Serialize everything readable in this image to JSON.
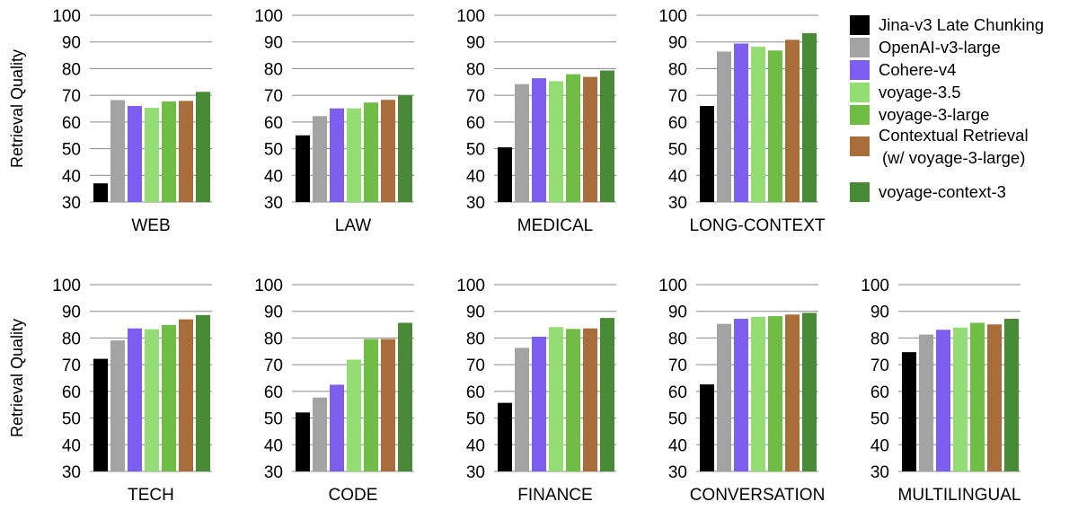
{
  "ylabel": "Retrieval Quality",
  "colors": [
    "#000000",
    "#a3a3a3",
    "#7d5ff0",
    "#93dd74",
    "#6fbd45",
    "#a86d3a",
    "#488a35"
  ],
  "legend": [
    "Jina-v3 Late Chunking",
    "OpenAI-v3-large",
    "Cohere-v4",
    "voyage-3.5",
    "voyage-3-large",
    "Contextual Retrieval",
    "(w/ voyage-3-large)",
    "voyage-context-3"
  ],
  "chart_data": [
    {
      "type": "bar",
      "title": "WEB",
      "ylabel": "Retrieval Quality",
      "ylim": [
        30,
        100
      ],
      "yticks": [
        30,
        40,
        50,
        60,
        70,
        80,
        90,
        100
      ],
      "grid": true,
      "categories": [
        "Jina-v3 Late Chunking",
        "OpenAI-v3-large",
        "Cohere-v4",
        "voyage-3.5",
        "voyage-3-large",
        "Contextual Retrieval (w/ voyage-3-large)",
        "voyage-context-3"
      ],
      "values": [
        37,
        68.2,
        66,
        65.3,
        67.7,
        67.9,
        71.3
      ]
    },
    {
      "type": "bar",
      "title": "LAW",
      "ylabel": "",
      "ylim": [
        30,
        100
      ],
      "yticks": [
        30,
        40,
        50,
        60,
        70,
        80,
        90,
        100
      ],
      "grid": true,
      "categories": [
        "Jina-v3 Late Chunking",
        "OpenAI-v3-large",
        "Cohere-v4",
        "voyage-3.5",
        "voyage-3-large",
        "Contextual Retrieval (w/ voyage-3-large)",
        "voyage-context-3"
      ],
      "values": [
        55,
        62.2,
        65.1,
        65.1,
        67.3,
        68.3,
        70
      ]
    },
    {
      "type": "bar",
      "title": "MEDICAL",
      "ylabel": "",
      "ylim": [
        30,
        100
      ],
      "yticks": [
        30,
        40,
        50,
        60,
        70,
        80,
        90,
        100
      ],
      "grid": true,
      "categories": [
        "Jina-v3 Late Chunking",
        "OpenAI-v3-large",
        "Cohere-v4",
        "voyage-3.5",
        "voyage-3-large",
        "Contextual Retrieval (w/ voyage-3-large)",
        "voyage-context-3"
      ],
      "values": [
        50.5,
        74.2,
        76.4,
        75.3,
        77.9,
        76.9,
        79.3
      ]
    },
    {
      "type": "bar",
      "title": "LONG-CONTEXT",
      "ylabel": "",
      "ylim": [
        30,
        100
      ],
      "yticks": [
        30,
        40,
        50,
        60,
        70,
        80,
        90,
        100
      ],
      "grid": true,
      "categories": [
        "Jina-v3 Late Chunking",
        "OpenAI-v3-large",
        "Cohere-v4",
        "voyage-3.5",
        "voyage-3-large",
        "Contextual Retrieval (w/ voyage-3-large)",
        "voyage-context-3"
      ],
      "values": [
        66,
        86.4,
        89.4,
        88.2,
        86.8,
        90.8,
        93.3
      ]
    },
    {
      "type": "bar",
      "title": "TECH",
      "ylabel": "Retrieval Quality",
      "ylim": [
        30,
        100
      ],
      "yticks": [
        30,
        40,
        50,
        60,
        70,
        80,
        90,
        100
      ],
      "grid": true,
      "categories": [
        "Jina-v3 Late Chunking",
        "OpenAI-v3-large",
        "Cohere-v4",
        "voyage-3.5",
        "voyage-3-large",
        "Contextual Retrieval (w/ voyage-3-large)",
        "voyage-context-3"
      ],
      "values": [
        72.2,
        79.1,
        83.6,
        83.3,
        84.9,
        87,
        88.6
      ]
    },
    {
      "type": "bar",
      "title": "CODE",
      "ylabel": "",
      "ylim": [
        30,
        100
      ],
      "yticks": [
        30,
        40,
        50,
        60,
        70,
        80,
        90,
        100
      ],
      "grid": true,
      "categories": [
        "Jina-v3 Late Chunking",
        "OpenAI-v3-large",
        "Cohere-v4",
        "voyage-3.5",
        "voyage-3-large",
        "Contextual Retrieval (w/ voyage-3-large)",
        "voyage-context-3"
      ],
      "values": [
        52.1,
        57.7,
        62.5,
        71.9,
        79.6,
        79.6,
        85.7
      ]
    },
    {
      "type": "bar",
      "title": "FINANCE",
      "ylabel": "",
      "ylim": [
        30,
        100
      ],
      "yticks": [
        30,
        40,
        50,
        60,
        70,
        80,
        90,
        100
      ],
      "grid": true,
      "categories": [
        "Jina-v3 Late Chunking",
        "OpenAI-v3-large",
        "Cohere-v4",
        "voyage-3.5",
        "voyage-3-large",
        "Contextual Retrieval (w/ voyage-3-large)",
        "voyage-context-3"
      ],
      "values": [
        55.7,
        76.3,
        80.5,
        84.1,
        83.4,
        83.6,
        87.5
      ]
    },
    {
      "type": "bar",
      "title": "CONVERSATION",
      "ylabel": "",
      "ylim": [
        30,
        100
      ],
      "yticks": [
        30,
        40,
        50,
        60,
        70,
        80,
        90,
        100
      ],
      "grid": true,
      "categories": [
        "Jina-v3 Late Chunking",
        "OpenAI-v3-large",
        "Cohere-v4",
        "voyage-3.5",
        "voyage-3-large",
        "Contextual Retrieval (w/ voyage-3-large)",
        "voyage-context-3"
      ],
      "values": [
        62.6,
        85.3,
        87.2,
        87.9,
        88.2,
        88.8,
        89.4
      ]
    },
    {
      "type": "bar",
      "title": "MULTILINGUAL",
      "ylabel": "",
      "ylim": [
        30,
        100
      ],
      "yticks": [
        30,
        40,
        50,
        60,
        70,
        80,
        90,
        100
      ],
      "grid": true,
      "categories": [
        "Jina-v3 Late Chunking",
        "OpenAI-v3-large",
        "Cohere-v4",
        "voyage-3.5",
        "voyage-3-large",
        "Contextual Retrieval (w/ voyage-3-large)",
        "voyage-context-3"
      ],
      "values": [
        74.7,
        81.3,
        83.1,
        83.9,
        85.7,
        85.1,
        87.2
      ]
    }
  ]
}
